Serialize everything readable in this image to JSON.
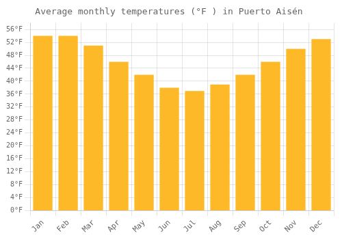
{
  "chart_data": {
    "type": "bar",
    "title": "Average monthly temperatures (°F ) in Puerto Aisén",
    "categories": [
      "Jan",
      "Feb",
      "Mar",
      "Apr",
      "May",
      "Jun",
      "Jul",
      "Aug",
      "Sep",
      "Oct",
      "Nov",
      "Dec"
    ],
    "values": [
      54,
      54,
      51,
      46,
      42,
      38,
      37,
      39,
      42,
      46,
      50,
      53
    ],
    "color": "#FDB927",
    "ylim": [
      0,
      58
    ],
    "yticks": [
      {
        "value": 0,
        "label": "0°F"
      },
      {
        "value": 4,
        "label": "4°F"
      },
      {
        "value": 8,
        "label": "8°F"
      },
      {
        "value": 12,
        "label": "12°F"
      },
      {
        "value": 16,
        "label": "16°F"
      },
      {
        "value": 20,
        "label": "20°F"
      },
      {
        "value": 24,
        "label": "24°F"
      },
      {
        "value": 28,
        "label": "28°F"
      },
      {
        "value": 32,
        "label": "32°F"
      },
      {
        "value": 36,
        "label": "36°F"
      },
      {
        "value": 40,
        "label": "40°F"
      },
      {
        "value": 44,
        "label": "44°F"
      },
      {
        "value": 48,
        "label": "48°F"
      },
      {
        "value": 52,
        "label": "52°F"
      },
      {
        "value": 56,
        "label": "56°F"
      }
    ],
    "grid": true
  }
}
